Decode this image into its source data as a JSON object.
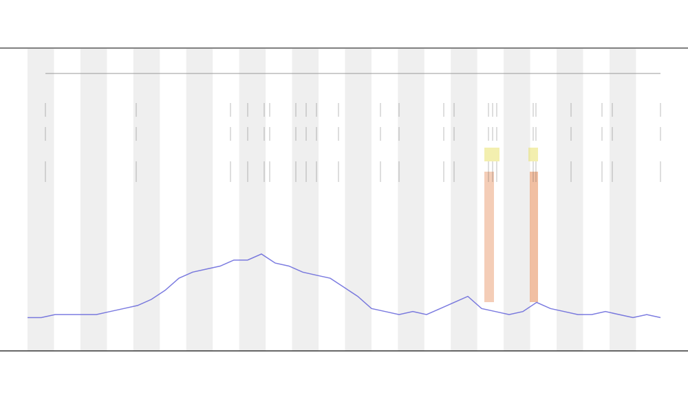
{
  "chart_data": {
    "type": "line",
    "color": "#5a5ad8",
    "ylim": [
      0,
      100
    ],
    "values": [
      11,
      11,
      12,
      12,
      12,
      12,
      13,
      14,
      15,
      17,
      20,
      24,
      26,
      27,
      28,
      30,
      30,
      32,
      29,
      28,
      26,
      25,
      24,
      21,
      18,
      14,
      13,
      12,
      13,
      12,
      14,
      16,
      18,
      14,
      13,
      12,
      13,
      16,
      14,
      13,
      12,
      12,
      13,
      12,
      11,
      12,
      11
    ]
  }
}
